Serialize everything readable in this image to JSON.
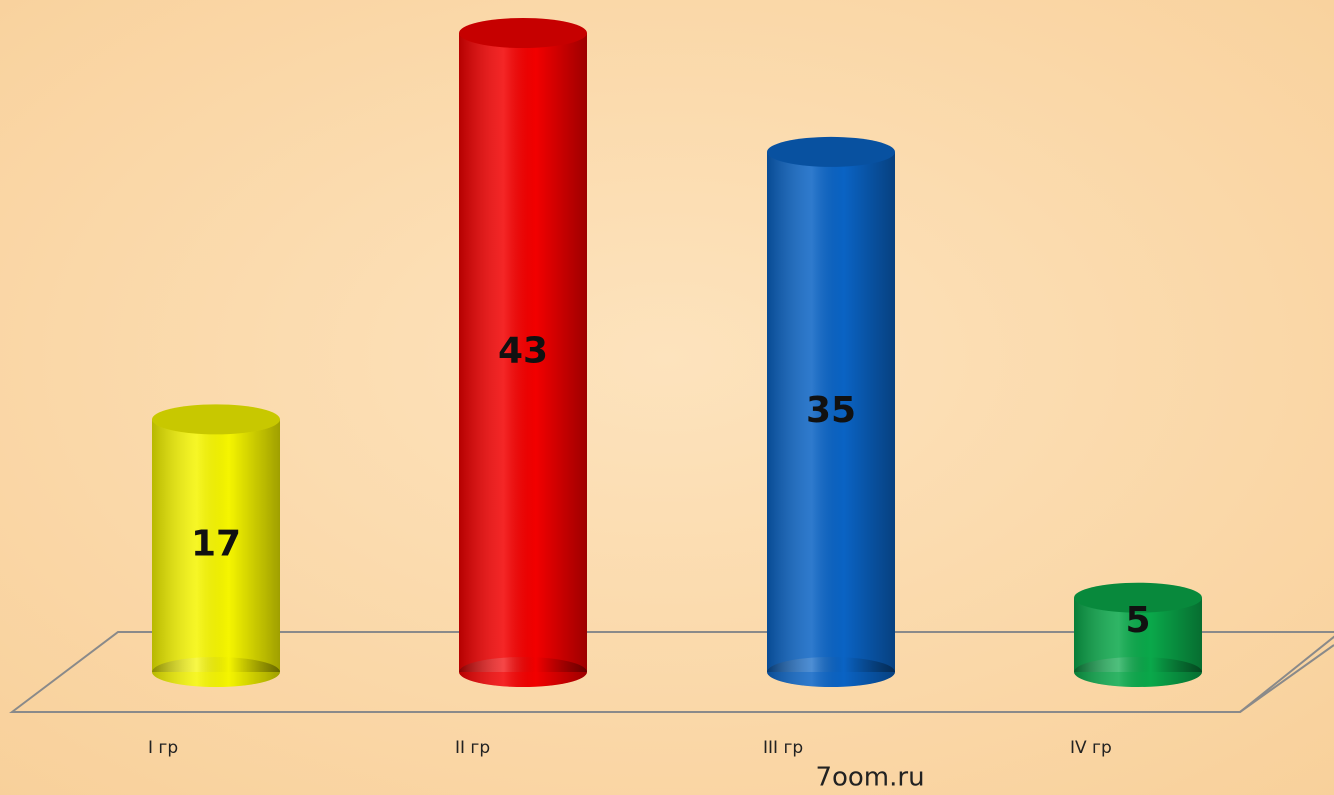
{
  "chart_data": {
    "type": "bar",
    "categories": [
      "I гр",
      "II гр",
      "III гр",
      "IV гр"
    ],
    "values": [
      17,
      43,
      35,
      5
    ],
    "colors": [
      "#f5f500",
      "#f20000",
      "#0a63c4",
      "#0aa84a"
    ],
    "source": "7oom.ru"
  }
}
